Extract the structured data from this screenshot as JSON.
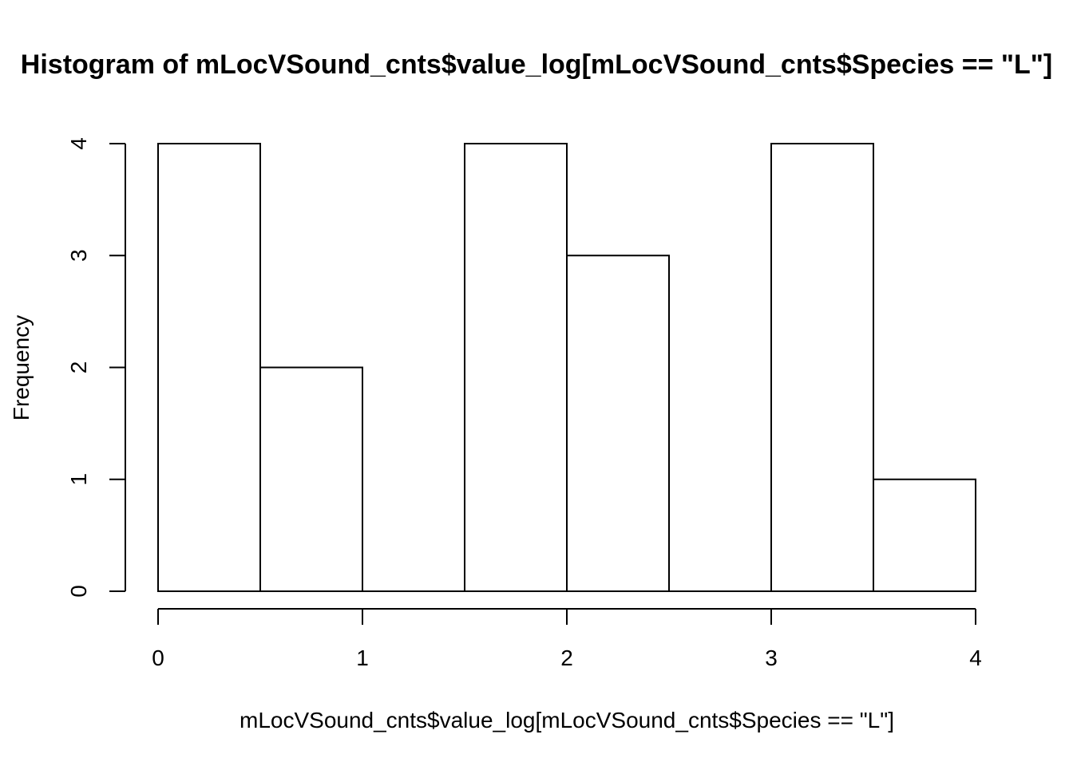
{
  "chart_data": {
    "type": "bar",
    "title": "Histogram of mLocVSound_cnts$value_log[mLocVSound_cnts$Species == \"L\"]",
    "xlabel": "mLocVSound_cnts$value_log[mLocVSound_cnts$Species == \"L\"]",
    "ylabel": "Frequency",
    "bins": [
      {
        "start": 0.0,
        "end": 0.5,
        "count": 4
      },
      {
        "start": 0.5,
        "end": 1.0,
        "count": 2
      },
      {
        "start": 1.0,
        "end": 1.5,
        "count": 0
      },
      {
        "start": 1.5,
        "end": 2.0,
        "count": 4
      },
      {
        "start": 2.0,
        "end": 2.5,
        "count": 3
      },
      {
        "start": 2.5,
        "end": 3.0,
        "count": 0
      },
      {
        "start": 3.0,
        "end": 3.5,
        "count": 4
      },
      {
        "start": 3.5,
        "end": 4.0,
        "count": 1
      }
    ],
    "xlim": [
      0,
      4
    ],
    "ylim": [
      0,
      4
    ],
    "x_ticks": [
      0,
      1,
      2,
      3,
      4
    ],
    "y_ticks": [
      0,
      1,
      2,
      3,
      4
    ],
    "grid": false,
    "legend": "none"
  }
}
